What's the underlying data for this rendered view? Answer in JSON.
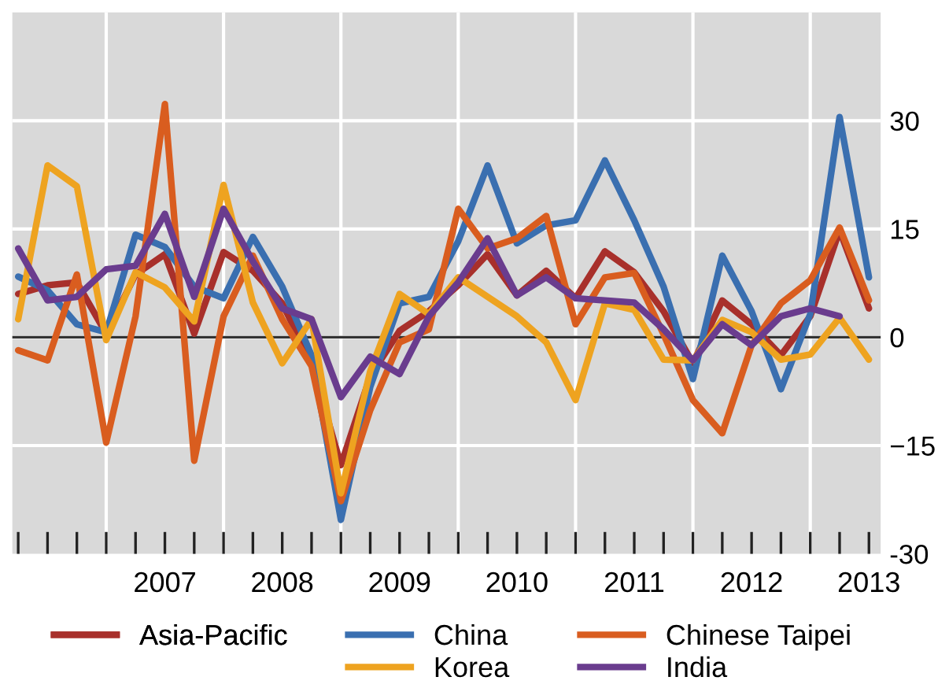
{
  "chart_data": {
    "type": "line",
    "x": [
      2006.25,
      2006.5,
      2006.75,
      2007.0,
      2007.25,
      2007.5,
      2007.75,
      2008.0,
      2008.25,
      2008.5,
      2008.75,
      2009.0,
      2009.25,
      2009.5,
      2009.75,
      2010.0,
      2010.25,
      2010.5,
      2010.75,
      2011.0,
      2011.25,
      2011.5,
      2011.75,
      2012.0,
      2012.25,
      2012.5,
      2012.75,
      2013.0,
      2013.25,
      2013.5
    ],
    "series": [
      {
        "name": "Asia-Pacific",
        "color": "#a8302b",
        "values": [
          6.0,
          7.2,
          7.6,
          0.5,
          8.7,
          11.5,
          0.5,
          11.8,
          9.2,
          4.7,
          -3.6,
          -17.7,
          -5.4,
          0.9,
          3.6,
          7.2,
          11.5,
          5.8,
          9.2,
          5.4,
          11.9,
          9.0,
          3.6,
          -3.6,
          5.1,
          1.8,
          -2.5,
          2.9,
          14.8,
          4.0
        ]
      },
      {
        "name": "China",
        "color": "#3a6fb0",
        "values": [
          8.4,
          6.5,
          1.8,
          0.7,
          14.2,
          12.5,
          7.0,
          5.4,
          13.9,
          7.0,
          -2.5,
          -25.3,
          -6.9,
          4.7,
          5.6,
          13.3,
          23.8,
          13.0,
          15.5,
          16.2,
          24.5,
          16.2,
          7.0,
          -5.8,
          11.3,
          3.6,
          -7.2,
          3.2,
          30.5,
          8.3
        ]
      },
      {
        "name": "Chinese Taipei",
        "color": "#d95d1f",
        "values": [
          -1.8,
          -3.2,
          8.7,
          -14.6,
          2.9,
          32.3,
          -17.1,
          2.9,
          11.3,
          2.5,
          -4.0,
          -22.7,
          -10.1,
          -0.7,
          1.1,
          17.8,
          12.3,
          13.7,
          16.8,
          1.8,
          8.3,
          8.9,
          0.4,
          -8.7,
          -13.3,
          -1.1,
          4.7,
          7.9,
          15.2,
          5.1
        ]
      },
      {
        "name": "Korea",
        "color": "#eea320",
        "values": [
          2.5,
          23.8,
          20.9,
          -0.4,
          9.0,
          6.9,
          2.2,
          21.1,
          4.8,
          -3.6,
          2.5,
          -21.6,
          -4.7,
          6.0,
          3.2,
          8.3,
          5.6,
          2.9,
          -0.7,
          -8.7,
          4.7,
          3.8,
          -3.1,
          -3.2,
          2.4,
          0.7,
          -3.1,
          -2.4,
          2.7,
          -3.1
        ]
      },
      {
        "name": "India",
        "color": "#6a3c8e",
        "values": [
          12.3,
          5.1,
          5.6,
          9.4,
          9.9,
          17.1,
          5.6,
          17.8,
          10.5,
          4.0,
          2.5,
          -8.3,
          -2.7,
          -5.1,
          2.9,
          7.6,
          13.7,
          5.8,
          8.3,
          5.4,
          5.1,
          4.8,
          1.1,
          -3.2,
          1.8,
          -1.1,
          2.9,
          4.0,
          2.9,
          null
        ]
      }
    ],
    "xlim": [
      2006.2,
      2013.6
    ],
    "xticks": [
      {
        "value": 2006.25,
        "label": null
      },
      {
        "value": 2006.5,
        "label": null
      },
      {
        "value": 2006.75,
        "label": null
      },
      {
        "value": 2007,
        "label": null
      },
      {
        "value": 2007.25,
        "label": null
      },
      {
        "value": 2007.5,
        "label": "2007"
      },
      {
        "value": 2007.75,
        "label": null
      },
      {
        "value": 2008,
        "label": null
      },
      {
        "value": 2008.25,
        "label": null
      },
      {
        "value": 2008.5,
        "label": "2008"
      },
      {
        "value": 2008.75,
        "label": null
      },
      {
        "value": 2009,
        "label": null
      },
      {
        "value": 2009.25,
        "label": null
      },
      {
        "value": 2009.5,
        "label": "2009"
      },
      {
        "value": 2009.75,
        "label": null
      },
      {
        "value": 2010,
        "label": null
      },
      {
        "value": 2010.25,
        "label": null
      },
      {
        "value": 2010.5,
        "label": "2010"
      },
      {
        "value": 2010.75,
        "label": null
      },
      {
        "value": 2011,
        "label": null
      },
      {
        "value": 2011.25,
        "label": null
      },
      {
        "value": 2011.5,
        "label": "2011"
      },
      {
        "value": 2011.75,
        "label": null
      },
      {
        "value": 2012,
        "label": null
      },
      {
        "value": 2012.25,
        "label": null
      },
      {
        "value": 2012.5,
        "label": "2012"
      },
      {
        "value": 2012.75,
        "label": null
      },
      {
        "value": 2013,
        "label": null
      },
      {
        "value": 2013.25,
        "label": null
      },
      {
        "value": 2013.5,
        "label": "2013"
      }
    ],
    "ylim": [
      -30,
      45
    ],
    "yticks": [
      -30,
      {
        "value": -15,
        "label": "−15"
      },
      0,
      15,
      30
    ],
    "ref_lines": [
      {
        "axis": "y",
        "value": 0,
        "color": "#333333"
      }
    ],
    "grid": true,
    "legend": "bottom",
    "marker": "none",
    "line_style": "solid"
  }
}
